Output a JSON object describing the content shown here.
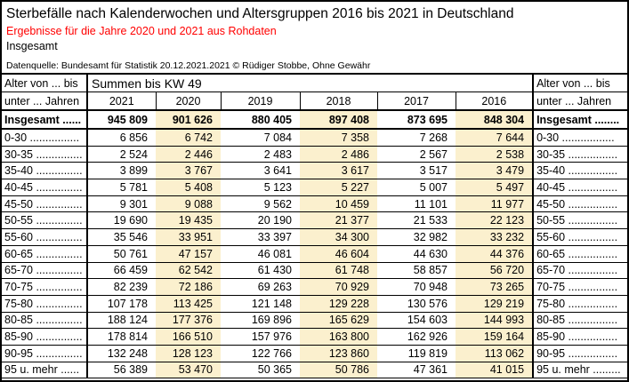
{
  "header": {
    "title": "Sterbefälle nach Kalenderwochen und Altersgruppen 2016 bis 2021 in Deutschland",
    "subtitle": "Ergebnisse für die Jahre 2020 und 2021 aus Rohdaten",
    "scope": "Insgesamt",
    "source": "Datenquelle: Bundesamt für Statistik 20.12.2021.2021 © Rüdiger Stobbe, Ohne Gewähr"
  },
  "colors": {
    "highlight": "#FBF0CE",
    "subtitle_red": "#FF0000",
    "border": "#000000",
    "background": "#FFFFFF"
  },
  "table": {
    "left_header": {
      "line1": "Alter von ... bis",
      "line2": "unter ... Jahren"
    },
    "right_header": {
      "line1": "Alter von ... bis",
      "line2": "unter ... Jahren"
    },
    "span_header": "Summen bis KW 49",
    "years": [
      "2021",
      "2020",
      "2019",
      "2018",
      "2017",
      "2016"
    ],
    "highlight_indices": [
      1,
      3,
      5
    ],
    "total_row": {
      "label_left": "Insgesamt ......",
      "label_right": "Insgesamt ........",
      "values": [
        "945 809",
        "901 626",
        "880 405",
        "897 408",
        "873 695",
        "848 304"
      ]
    },
    "rows": [
      {
        "label_left": "0-30 ................",
        "label_right": "0-30 .................",
        "values": [
          "6 856",
          "6 742",
          "7 084",
          "7 358",
          "7 268",
          "7 644"
        ]
      },
      {
        "label_left": "30-35 ...............",
        "label_right": "30-35 ................",
        "values": [
          "2 524",
          "2 446",
          "2 483",
          "2 486",
          "2 567",
          "2 538"
        ]
      },
      {
        "label_left": "35-40 ...............",
        "label_right": "35-40 ................",
        "values": [
          "3 899",
          "3 767",
          "3 641",
          "3 617",
          "3 517",
          "3 479"
        ]
      },
      {
        "label_left": "40-45 ...............",
        "label_right": "40-45 ................",
        "values": [
          "5 781",
          "5 408",
          "5 123",
          "5 227",
          "5 007",
          "5 497"
        ]
      },
      {
        "label_left": "45-50 ...............",
        "label_right": "45-50 ................",
        "values": [
          "9 301",
          "9 088",
          "9 562",
          "10 459",
          "11 101",
          "11 977"
        ]
      },
      {
        "label_left": "50-55 ...............",
        "label_right": "50-55 ................",
        "values": [
          "19 690",
          "19 435",
          "20 190",
          "21 377",
          "21 533",
          "22 123"
        ]
      },
      {
        "label_left": "55-60 ...............",
        "label_right": "55-60 ................",
        "values": [
          "35 546",
          "33 951",
          "33 397",
          "34 300",
          "32 982",
          "33 232"
        ]
      },
      {
        "label_left": "60-65 ...............",
        "label_right": "60-65 ................",
        "values": [
          "50 761",
          "47 157",
          "46 081",
          "46 604",
          "44 630",
          "44 376"
        ]
      },
      {
        "label_left": "65-70 ...............",
        "label_right": "65-70 ................",
        "values": [
          "66 459",
          "62 542",
          "61 430",
          "61 748",
          "58 857",
          "56 720"
        ]
      },
      {
        "label_left": "70-75 ...............",
        "label_right": "70-75 ................",
        "values": [
          "82 239",
          "72 186",
          "69 263",
          "70 929",
          "70 948",
          "73 265"
        ]
      },
      {
        "label_left": "75-80 ...............",
        "label_right": "75-80 ................",
        "values": [
          "107 178",
          "113 425",
          "121 148",
          "129 228",
          "130 576",
          "129 219"
        ]
      },
      {
        "label_left": "80-85 ...............",
        "label_right": "80-85 ................",
        "values": [
          "188 124",
          "177 376",
          "169 896",
          "165 629",
          "154 603",
          "144 993"
        ]
      },
      {
        "label_left": "85-90 ...............",
        "label_right": "85-90 ................",
        "values": [
          "178 814",
          "166 510",
          "157 976",
          "163 800",
          "162 926",
          "159 164"
        ]
      },
      {
        "label_left": "90-95 ...............",
        "label_right": "90-95 ................",
        "values": [
          "132 248",
          "128 123",
          "122 766",
          "123 860",
          "119 819",
          "113 062"
        ]
      },
      {
        "label_left": "95 u. mehr ......",
        "label_right": "95 u. mehr .........",
        "values": [
          "56 389",
          "53 470",
          "50 365",
          "50 786",
          "47 361",
          "41 015"
        ]
      }
    ]
  },
  "chart_data": {
    "type": "table",
    "title": "Sterbefälle nach Kalenderwochen und Altersgruppen 2016 bis 2021 in Deutschland",
    "subtitle": "Ergebnisse für die Jahre 2020 und 2021 aus Rohdaten",
    "note": "Summen bis KW 49",
    "row_label": "Alter von ... bis unter ... Jahren",
    "columns": [
      "2021",
      "2020",
      "2019",
      "2018",
      "2017",
      "2016"
    ],
    "highlighted_columns": [
      "2020",
      "2018",
      "2016"
    ],
    "rows": [
      {
        "label": "Insgesamt",
        "values": [
          945809,
          901626,
          880405,
          897408,
          873695,
          848304
        ]
      },
      {
        "label": "0-30",
        "values": [
          6856,
          6742,
          7084,
          7358,
          7268,
          7644
        ]
      },
      {
        "label": "30-35",
        "values": [
          2524,
          2446,
          2483,
          2486,
          2567,
          2538
        ]
      },
      {
        "label": "35-40",
        "values": [
          3899,
          3767,
          3641,
          3617,
          3517,
          3479
        ]
      },
      {
        "label": "40-45",
        "values": [
          5781,
          5408,
          5123,
          5227,
          5007,
          5497
        ]
      },
      {
        "label": "45-50",
        "values": [
          9301,
          9088,
          9562,
          10459,
          11101,
          11977
        ]
      },
      {
        "label": "50-55",
        "values": [
          19690,
          19435,
          20190,
          21377,
          21533,
          22123
        ]
      },
      {
        "label": "55-60",
        "values": [
          35546,
          33951,
          33397,
          34300,
          32982,
          33232
        ]
      },
      {
        "label": "60-65",
        "values": [
          50761,
          47157,
          46081,
          46604,
          44630,
          44376
        ]
      },
      {
        "label": "65-70",
        "values": [
          66459,
          62542,
          61430,
          61748,
          58857,
          56720
        ]
      },
      {
        "label": "70-75",
        "values": [
          82239,
          72186,
          69263,
          70929,
          70948,
          73265
        ]
      },
      {
        "label": "75-80",
        "values": [
          107178,
          113425,
          121148,
          129228,
          130576,
          129219
        ]
      },
      {
        "label": "80-85",
        "values": [
          188124,
          177376,
          169896,
          165629,
          154603,
          144993
        ]
      },
      {
        "label": "85-90",
        "values": [
          178814,
          166510,
          157976,
          163800,
          162926,
          159164
        ]
      },
      {
        "label": "90-95",
        "values": [
          132248,
          128123,
          122766,
          123860,
          119819,
          113062
        ]
      },
      {
        "label": "95 u. mehr",
        "values": [
          56389,
          53470,
          50365,
          50786,
          47361,
          41015
        ]
      }
    ]
  }
}
